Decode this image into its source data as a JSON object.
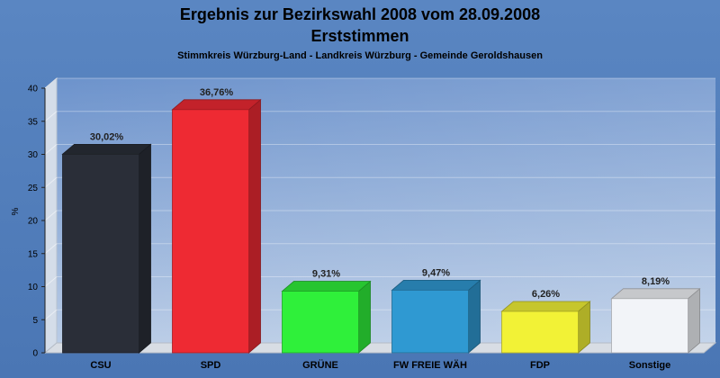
{
  "chart_data": {
    "type": "bar",
    "title": "Ergebnis zur Bezirkswahl 2008 vom 28.09.2008",
    "title2": "Erststimmen",
    "subtitle": "Stimmkreis Würzburg-Land - Landkreis Würzburg - Gemeinde Geroldshausen",
    "ylabel": "%",
    "xlabel": "",
    "ylim": [
      0,
      40
    ],
    "yticks": [
      0,
      5,
      10,
      15,
      20,
      25,
      30,
      35,
      40
    ],
    "grid": true,
    "categories": [
      "CSU",
      "SPD",
      "GRÜNE",
      "FW FREIE WÄH",
      "FDP",
      "Sonstige"
    ],
    "values": [
      30.02,
      36.76,
      9.31,
      9.47,
      6.26,
      8.19
    ],
    "value_labels": [
      "30,02%",
      "36,76%",
      "9,31%",
      "9,47%",
      "6,26%",
      "8,19%"
    ],
    "colors": [
      "#2a2e38",
      "#ee2a33",
      "#2ff03a",
      "#2f99d2",
      "#f2f236",
      "#f2f4f8"
    ]
  }
}
